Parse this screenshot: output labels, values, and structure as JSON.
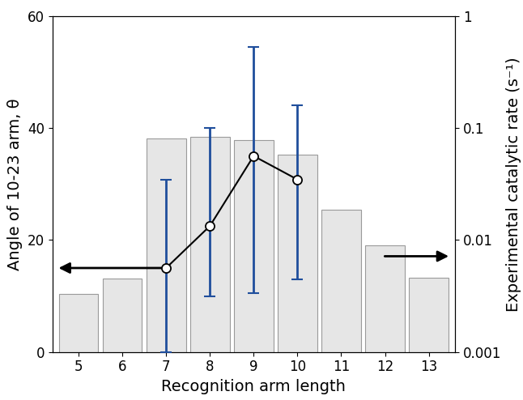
{
  "chart_data": {
    "type": "bar",
    "x_label": "Recognition arm length",
    "y_label": "Angle of 10-23 arm, θ",
    "y2_label": "Experimental catalytic rate (s⁻¹)",
    "xlim": [
      4.4,
      13.6
    ],
    "xticks": [
      5,
      6,
      7,
      8,
      9,
      10,
      11,
      12,
      13
    ],
    "ylim": [
      0,
      60
    ],
    "yticks": [
      0,
      20,
      40,
      60
    ],
    "y2lim": [
      0.001,
      1
    ],
    "y2ticks": [
      0.001,
      0.01,
      0.1,
      1
    ],
    "log": "y2",
    "series": [
      {
        "name": "Experimental catalytic rate",
        "type": "bar",
        "axis": "y2",
        "color": "#e6e6e6",
        "x": [
          5,
          6,
          7,
          8,
          9,
          10,
          11,
          12,
          13
        ],
        "values": [
          0.0033,
          0.0045,
          0.08,
          0.083,
          0.078,
          0.058,
          0.0185,
          0.0089,
          0.0046
        ]
      },
      {
        "name": "Angle of 10-23 arm",
        "type": "line",
        "color": "#000000",
        "marker": "circle",
        "error_color": "#1f4e9c",
        "x": [
          7,
          8,
          9,
          10
        ],
        "values": [
          15,
          22.5,
          35,
          30.8
        ],
        "error_lower": [
          0,
          10,
          10.5,
          13
        ],
        "error_upper": [
          30.7,
          40,
          54.5,
          44
        ]
      }
    ]
  }
}
